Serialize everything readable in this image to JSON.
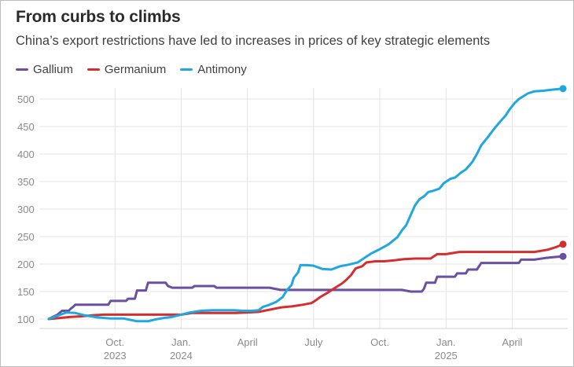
{
  "header": {
    "title": "From curbs to climbs",
    "subtitle": "China’s export restrictions have led to increases in prices of key strategic elements"
  },
  "legend": [
    {
      "label": "Gallium",
      "color": "#6b4fa0"
    },
    {
      "label": "Germanium",
      "color": "#d32f2f"
    },
    {
      "label": "Antimony",
      "color": "#1ea7e1"
    }
  ],
  "chart_data": {
    "type": "line",
    "title": "From curbs to climbs",
    "subtitle": "China’s export restrictions have led to increases in prices of key strategic elements",
    "xlabel": "",
    "ylabel": "",
    "x_unit": "months since July 2023",
    "xlim": [
      0,
      23.3
    ],
    "ylim": [
      100,
      520
    ],
    "y_ticks": [
      100,
      150,
      200,
      250,
      300,
      350,
      400,
      450,
      500
    ],
    "x_ticks": [
      {
        "x": 3,
        "label": "Oct.",
        "year": "2023"
      },
      {
        "x": 6,
        "label": "Jan.",
        "year": "2024"
      },
      {
        "x": 9,
        "label": "April",
        "year": ""
      },
      {
        "x": 12,
        "label": "July",
        "year": ""
      },
      {
        "x": 15,
        "label": "Oct.",
        "year": ""
      },
      {
        "x": 18,
        "label": "Jan.",
        "year": "2025"
      },
      {
        "x": 21,
        "label": "April",
        "year": ""
      }
    ],
    "grid": "vertical",
    "series": [
      {
        "name": "Gallium",
        "color": "#6b4fa0",
        "end_marker": true,
        "points": [
          [
            0.0,
            100
          ],
          [
            0.4,
            108
          ],
          [
            0.6,
            115
          ],
          [
            0.9,
            115
          ],
          [
            1.0,
            119
          ],
          [
            1.1,
            122
          ],
          [
            1.2,
            126
          ],
          [
            1.5,
            126
          ],
          [
            1.9,
            126
          ],
          [
            2.0,
            126
          ],
          [
            2.5,
            126
          ],
          [
            2.7,
            126
          ],
          [
            2.8,
            133
          ],
          [
            3.2,
            133
          ],
          [
            3.5,
            133
          ],
          [
            3.6,
            137
          ],
          [
            3.9,
            137
          ],
          [
            4.0,
            152
          ],
          [
            4.4,
            152
          ],
          [
            4.5,
            166
          ],
          [
            4.8,
            166
          ],
          [
            5.3,
            166
          ],
          [
            5.4,
            160
          ],
          [
            5.6,
            157
          ],
          [
            6.0,
            157
          ],
          [
            6.5,
            157
          ],
          [
            6.6,
            160
          ],
          [
            7.0,
            160
          ],
          [
            7.5,
            160
          ],
          [
            7.6,
            157
          ],
          [
            8.0,
            157
          ],
          [
            8.5,
            157
          ],
          [
            9.0,
            157
          ],
          [
            9.5,
            157
          ],
          [
            10.0,
            157
          ],
          [
            10.5,
            153
          ],
          [
            11.0,
            153
          ],
          [
            12.0,
            153
          ],
          [
            13.0,
            153
          ],
          [
            14.0,
            153
          ],
          [
            15.0,
            153
          ],
          [
            16.0,
            153
          ],
          [
            16.4,
            150
          ],
          [
            16.9,
            150
          ],
          [
            17.0,
            155
          ],
          [
            17.1,
            166
          ],
          [
            17.5,
            166
          ],
          [
            17.6,
            177
          ],
          [
            18.0,
            177
          ],
          [
            18.4,
            177
          ],
          [
            18.5,
            183
          ],
          [
            18.9,
            183
          ],
          [
            19.0,
            190
          ],
          [
            19.4,
            190
          ],
          [
            19.6,
            202
          ],
          [
            20.0,
            202
          ],
          [
            20.5,
            202
          ],
          [
            21.0,
            202
          ],
          [
            21.3,
            202
          ],
          [
            21.4,
            208
          ],
          [
            22.0,
            208
          ],
          [
            22.5,
            211
          ],
          [
            23.0,
            213
          ],
          [
            23.3,
            214
          ]
        ]
      },
      {
        "name": "Germanium",
        "color": "#d32f2f",
        "end_marker": true,
        "points": [
          [
            0.0,
            100
          ],
          [
            0.5,
            102
          ],
          [
            1.0,
            104
          ],
          [
            1.5,
            105
          ],
          [
            2.0,
            107
          ],
          [
            2.5,
            108
          ],
          [
            3.0,
            108
          ],
          [
            4.0,
            108
          ],
          [
            5.0,
            108
          ],
          [
            6.0,
            108
          ],
          [
            6.5,
            111
          ],
          [
            7.0,
            111
          ],
          [
            7.5,
            111
          ],
          [
            8.0,
            111
          ],
          [
            8.5,
            111
          ],
          [
            9.0,
            112
          ],
          [
            9.5,
            113
          ],
          [
            10.0,
            117
          ],
          [
            10.5,
            121
          ],
          [
            11.0,
            123
          ],
          [
            11.5,
            126
          ],
          [
            11.9,
            129
          ],
          [
            12.1,
            134
          ],
          [
            12.3,
            140
          ],
          [
            12.6,
            147
          ],
          [
            12.9,
            155
          ],
          [
            13.1,
            160
          ],
          [
            13.3,
            165
          ],
          [
            13.5,
            172
          ],
          [
            13.7,
            180
          ],
          [
            13.9,
            192
          ],
          [
            14.2,
            196
          ],
          [
            14.4,
            203
          ],
          [
            14.8,
            205
          ],
          [
            15.2,
            205
          ],
          [
            15.7,
            207
          ],
          [
            16.1,
            209
          ],
          [
            16.6,
            210
          ],
          [
            17.0,
            210
          ],
          [
            17.3,
            210
          ],
          [
            17.6,
            218
          ],
          [
            18.0,
            218
          ],
          [
            18.3,
            220
          ],
          [
            18.6,
            222
          ],
          [
            19.0,
            222
          ],
          [
            20.0,
            222
          ],
          [
            21.0,
            222
          ],
          [
            22.0,
            222
          ],
          [
            22.6,
            226
          ],
          [
            23.0,
            231
          ],
          [
            23.3,
            236
          ]
        ]
      },
      {
        "name": "Antimony",
        "color": "#1ea7e1",
        "end_marker": true,
        "points": [
          [
            0.0,
            100
          ],
          [
            0.8,
            112
          ],
          [
            1.2,
            111
          ],
          [
            1.6,
            107
          ],
          [
            2.2,
            103
          ],
          [
            2.8,
            101
          ],
          [
            3.4,
            101
          ],
          [
            4.0,
            96
          ],
          [
            4.5,
            96
          ],
          [
            4.8,
            99
          ],
          [
            5.2,
            102
          ],
          [
            5.6,
            104
          ],
          [
            6.0,
            108
          ],
          [
            6.4,
            112
          ],
          [
            6.9,
            115
          ],
          [
            7.4,
            116
          ],
          [
            7.9,
            116
          ],
          [
            8.4,
            116
          ],
          [
            8.8,
            115
          ],
          [
            9.2,
            115
          ],
          [
            9.5,
            116
          ],
          [
            9.7,
            122
          ],
          [
            10.0,
            126
          ],
          [
            10.3,
            131
          ],
          [
            10.6,
            140
          ],
          [
            10.8,
            153
          ],
          [
            11.0,
            162
          ],
          [
            11.1,
            175
          ],
          [
            11.3,
            185
          ],
          [
            11.4,
            198
          ],
          [
            11.7,
            198
          ],
          [
            12.0,
            197
          ],
          [
            12.4,
            191
          ],
          [
            12.8,
            190
          ],
          [
            13.2,
            196
          ],
          [
            13.6,
            199
          ],
          [
            14.0,
            203
          ],
          [
            14.3,
            211
          ],
          [
            14.6,
            219
          ],
          [
            15.0,
            227
          ],
          [
            15.4,
            236
          ],
          [
            15.8,
            249
          ],
          [
            16.0,
            261
          ],
          [
            16.2,
            271
          ],
          [
            16.4,
            289
          ],
          [
            16.6,
            307
          ],
          [
            16.8,
            318
          ],
          [
            17.0,
            323
          ],
          [
            17.2,
            331
          ],
          [
            17.4,
            333
          ],
          [
            17.7,
            337
          ],
          [
            17.9,
            347
          ],
          [
            18.2,
            355
          ],
          [
            18.4,
            357
          ],
          [
            18.7,
            367
          ],
          [
            18.9,
            372
          ],
          [
            19.2,
            386
          ],
          [
            19.4,
            400
          ],
          [
            19.6,
            416
          ],
          [
            19.9,
            431
          ],
          [
            20.2,
            447
          ],
          [
            20.5,
            461
          ],
          [
            20.7,
            470
          ],
          [
            20.9,
            482
          ],
          [
            21.1,
            492
          ],
          [
            21.3,
            500
          ],
          [
            21.5,
            505
          ],
          [
            21.7,
            510
          ],
          [
            22.0,
            514
          ],
          [
            22.4,
            515
          ],
          [
            22.8,
            517
          ],
          [
            23.3,
            519
          ]
        ]
      }
    ]
  }
}
